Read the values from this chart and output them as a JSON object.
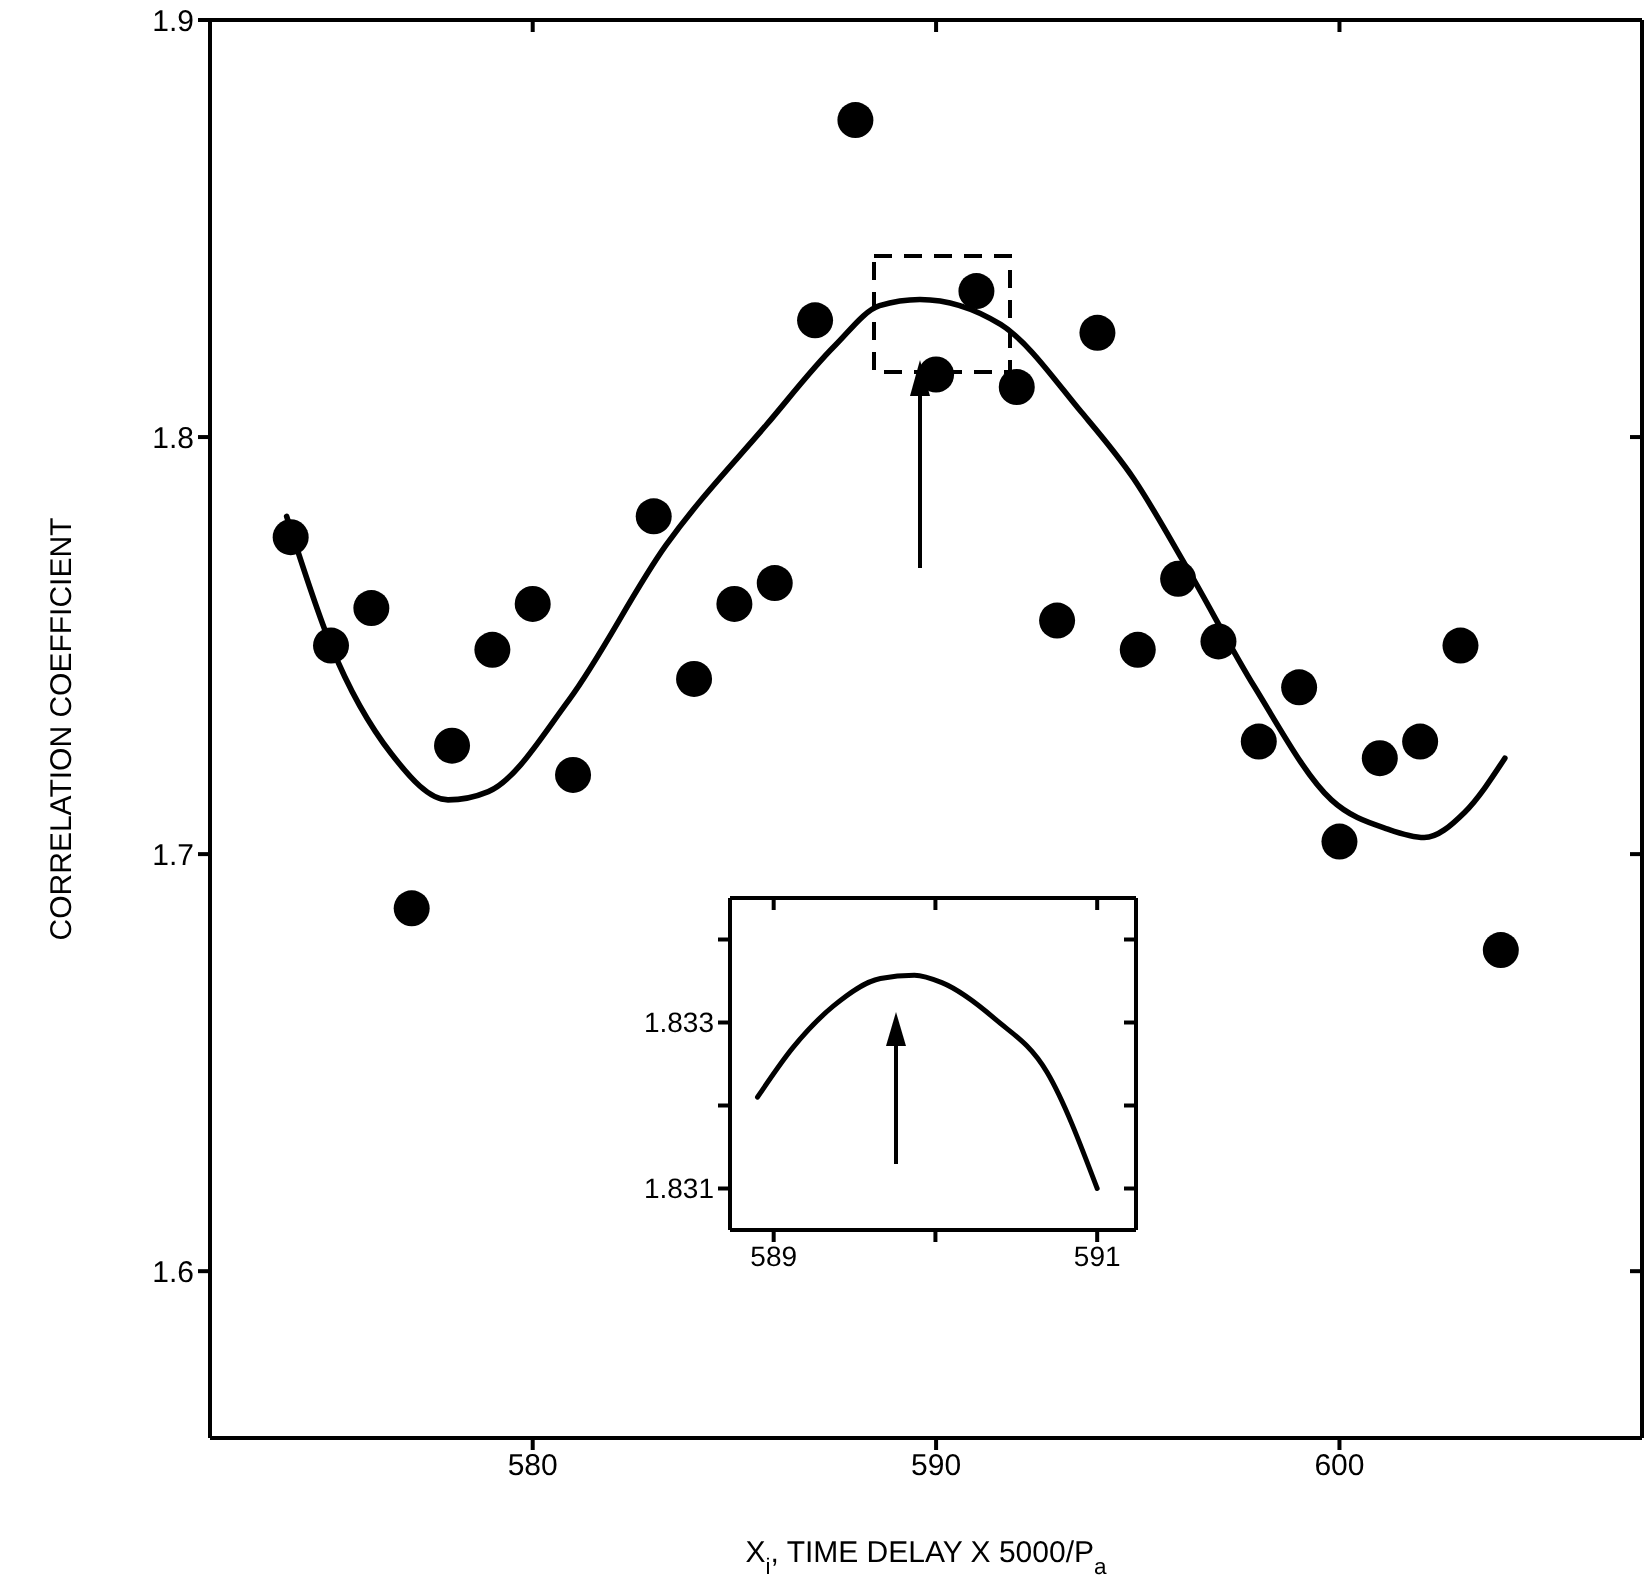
{
  "chart_data": [
    {
      "type": "scatter",
      "xlabel": "X$_{i}$, TIME DELAY X 5000/P$_{a}$",
      "ylabel": "CORRELATION COEFFICIENT",
      "xlim": [
        572,
        607.5
      ],
      "ylim": [
        1.56,
        1.9
      ],
      "xticks": [
        580,
        590,
        600
      ],
      "yticks": [
        1.6,
        1.7,
        1.8,
        1.9
      ],
      "series": [
        {
          "color": "#000000",
          "marker": "circle",
          "x": [
            574,
            575,
            576,
            577,
            578,
            579,
            580,
            581,
            583,
            584,
            585,
            586,
            587,
            588,
            590,
            591,
            592,
            593,
            594,
            595,
            596,
            597,
            598,
            599,
            600,
            601,
            602,
            603,
            604
          ],
          "values": [
            1.776,
            1.75,
            1.759,
            1.687,
            1.726,
            1.749,
            1.76,
            1.719,
            1.781,
            1.742,
            1.76,
            1.765,
            1.828,
            1.876,
            1.815,
            1.835,
            1.812,
            1.756,
            1.825,
            1.749,
            1.766,
            1.751,
            1.727,
            1.74,
            1.703,
            1.723,
            1.727,
            1.75,
            1.677
          ]
        },
        {
          "type": "line",
          "color": "#000000",
          "marker": "none",
          "line_style": "solid",
          "x": [
            573.9,
            575,
            576.5,
            577.9,
            578.9,
            580.9,
            583.3,
            585.8,
            587.5,
            588.6,
            589.6,
            591.6,
            593.6,
            594.9,
            596.2,
            597.9,
            599.8,
            601.2,
            602.1,
            603.1,
            604.1
          ],
          "values": [
            1.781,
            1.75,
            1.724,
            1.713,
            1.715,
            1.737,
            1.774,
            1.803,
            1.822,
            1.8315,
            1.833,
            1.827,
            1.806,
            1.79,
            1.769,
            1.74,
            1.713,
            1.706,
            1.704,
            1.71,
            1.723
          ]
        }
      ]
    },
    {
      "type": "line",
      "xlim": [
        588.73,
        591.24
      ],
      "ylim": [
        1.8305,
        1.8345
      ],
      "xticks": [
        589,
        {
          "value": 590,
          "label": null
        },
        591
      ],
      "yticks": [
        1.831,
        {
          "value": 1.832,
          "label": null
        },
        1.833,
        {
          "value": 1.834,
          "label": null
        }
      ],
      "series": [
        {
          "color": "#000000",
          "marker": "none",
          "line_style": "solid",
          "x": [
            588.9,
            589.12,
            589.37,
            589.66,
            589.87,
            590.04,
            590.37,
            590.69,
            591.0
          ],
          "values": [
            1.8321,
            1.8327,
            1.8332,
            1.83353,
            1.83357,
            1.83348,
            1.83304,
            1.8324,
            1.831
          ]
        }
      ]
    }
  ]
}
